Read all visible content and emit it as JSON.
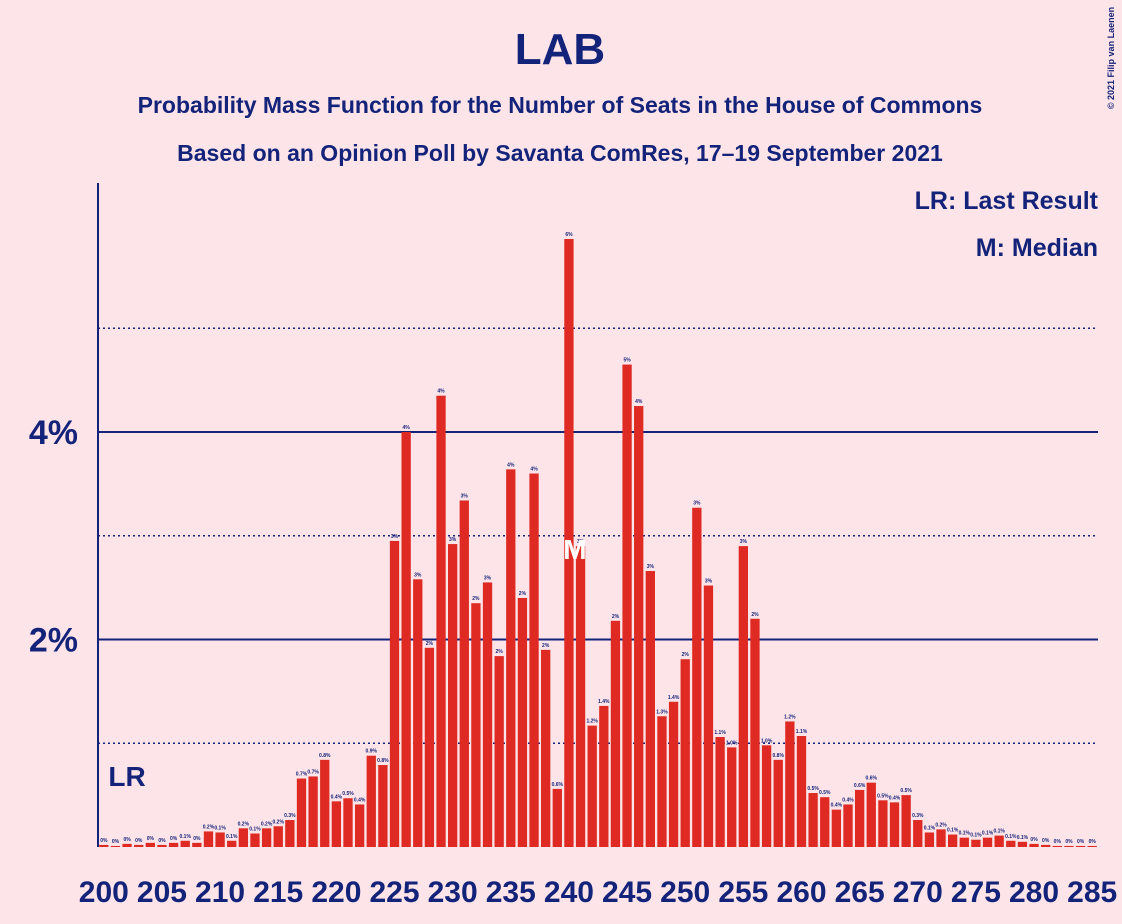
{
  "chart_data": {
    "type": "bar",
    "title": "LAB",
    "subtitles": [
      "Probability Mass Function for the Number of Seats in the House of Commons",
      "Based on an Opinion Poll by Savanta ComRes, 17–19 September 2021"
    ],
    "copyright": "© 2021 Filip van Laenen",
    "x": [
      200,
      201,
      202,
      203,
      204,
      205,
      206,
      207,
      208,
      209,
      210,
      211,
      212,
      213,
      214,
      215,
      216,
      217,
      218,
      219,
      220,
      221,
      222,
      223,
      224,
      225,
      226,
      227,
      228,
      229,
      230,
      231,
      232,
      233,
      234,
      235,
      236,
      237,
      238,
      239,
      240,
      241,
      242,
      243,
      244,
      245,
      246,
      247,
      248,
      249,
      250,
      251,
      252,
      253,
      254,
      255,
      256,
      257,
      258,
      259,
      260,
      261,
      262,
      263,
      264,
      265,
      266,
      267,
      268,
      269,
      270,
      271,
      272,
      273,
      274,
      275,
      276,
      277,
      278,
      279,
      280,
      281,
      282,
      283,
      284,
      285
    ],
    "values": [
      0.02,
      0.01,
      0.03,
      0.02,
      0.04,
      0.02,
      0.04,
      0.06,
      0.04,
      0.15,
      0.14,
      0.06,
      0.18,
      0.13,
      0.18,
      0.2,
      0.26,
      0.66,
      0.68,
      0.84,
      0.44,
      0.47,
      0.41,
      0.88,
      0.79,
      2.95,
      4.0,
      2.58,
      1.92,
      4.35,
      2.92,
      3.34,
      2.35,
      2.55,
      1.84,
      3.64,
      2.4,
      3.6,
      1.9,
      0.56,
      5.86,
      2.9,
      1.17,
      1.36,
      2.18,
      4.65,
      4.25,
      2.66,
      1.26,
      1.4,
      1.81,
      3.27,
      2.52,
      1.06,
      0.96,
      2.9,
      2.2,
      0.98,
      0.84,
      1.21,
      1.07,
      0.52,
      0.48,
      0.36,
      0.41,
      0.55,
      0.62,
      0.45,
      0.43,
      0.5,
      0.26,
      0.14,
      0.17,
      0.12,
      0.09,
      0.07,
      0.09,
      0.11,
      0.06,
      0.05,
      0.03,
      0.02,
      0.01,
      0.01,
      0.01,
      0.01
    ],
    "value_labels": [
      "0%",
      "0%",
      "0%",
      "0%",
      "0%",
      "0%",
      "0%",
      "0.1%",
      "0%",
      "0.2%",
      "0.1%",
      "0.1%",
      "0.2%",
      "0.1%",
      "0.2%",
      "0.2%",
      "0.3%",
      "0.7%",
      "0.7%",
      "0.8%",
      "0.4%",
      "0.5%",
      "0.4%",
      "0.9%",
      "0.8%",
      "3%",
      "4%",
      "3%",
      "2%",
      "4%",
      "3%",
      "3%",
      "2%",
      "3%",
      "2%",
      "4%",
      "2%",
      "4%",
      "2%",
      "0.6%",
      "6%",
      "3%",
      "1.2%",
      "1.4%",
      "2%",
      "5%",
      "4%",
      "3%",
      "1.3%",
      "1.4%",
      "2%",
      "3%",
      "3%",
      "1.1%",
      "1.0%",
      "3%",
      "2%",
      "1.0%",
      "0.8%",
      "1.2%",
      "1.1%",
      "0.5%",
      "0.5%",
      "0.4%",
      "0.4%",
      "0.6%",
      "0.6%",
      "0.5%",
      "0.4%",
      "0.5%",
      "0.3%",
      "0.1%",
      "0.2%",
      "0.1%",
      "0.1%",
      "0.1%",
      "0.1%",
      "0.1%",
      "0.1%",
      "0.1%",
      "0%",
      "0%",
      "0%",
      "0%",
      "0%",
      "0%"
    ],
    "color": "#de2a22",
    "xlim": [
      199.5,
      285.5
    ],
    "xticks": [
      200,
      205,
      210,
      215,
      220,
      225,
      230,
      235,
      240,
      245,
      250,
      255,
      260,
      265,
      270,
      275,
      280,
      285
    ],
    "ylim": [
      0,
      6.4
    ],
    "yticks": [
      {
        "value": 2,
        "label": "2%"
      },
      {
        "value": 4,
        "label": "4%"
      }
    ],
    "minor_grid": [
      1,
      3,
      5
    ],
    "last_result": {
      "x": 202,
      "label": "LR"
    },
    "median": {
      "x": 240,
      "label": "M"
    },
    "legend": [
      "LR: Last Result",
      "M: Median"
    ]
  }
}
